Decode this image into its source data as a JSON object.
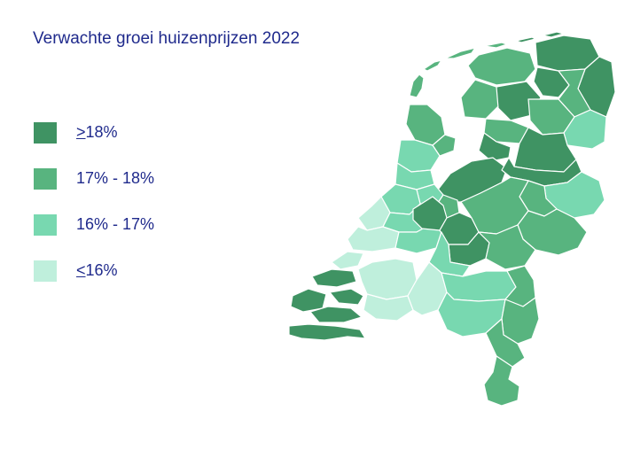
{
  "title": "Verwachte groei huizenprijzen 2022",
  "colors": {
    "band1": "#3f9363",
    "band2": "#58b47f",
    "band3": "#78d8b0",
    "band4": "#bfefdc"
  },
  "legend": [
    {
      "symbol": ">",
      "text": "18%",
      "color": "#3f9363"
    },
    {
      "symbol": "",
      "text": "17% - 18%",
      "color": "#58b47f"
    },
    {
      "symbol": "",
      "text": "16% - 17%",
      "color": "#78d8b0"
    },
    {
      "symbol": "<",
      "text": "16%",
      "color": "#bfefdc"
    }
  ]
}
